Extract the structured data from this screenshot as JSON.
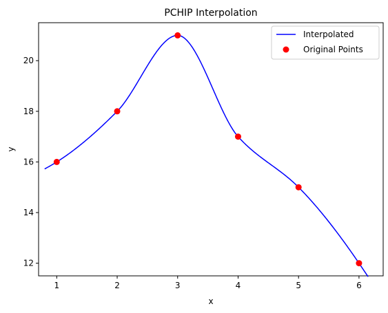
{
  "chart_data": {
    "type": "line",
    "title": "PCHIP Interpolation",
    "xlabel": "x",
    "ylabel": "y",
    "xlim": [
      0.7,
      6.4
    ],
    "ylim": [
      11.5,
      21.5
    ],
    "xticks": [
      1,
      2,
      3,
      4,
      5,
      6
    ],
    "yticks": [
      12,
      14,
      16,
      18,
      20
    ],
    "grid": false,
    "legend_position": "top-right",
    "series": [
      {
        "name": "Interpolated",
        "kind": "line",
        "color": "#0000ff",
        "x_range": [
          0.8,
          6.15
        ]
      },
      {
        "name": "Original Points",
        "kind": "points",
        "color": "#ff0000",
        "x": [
          1,
          2,
          3,
          4,
          5,
          6
        ],
        "y": [
          16,
          18,
          21,
          17,
          15,
          12
        ]
      }
    ]
  }
}
